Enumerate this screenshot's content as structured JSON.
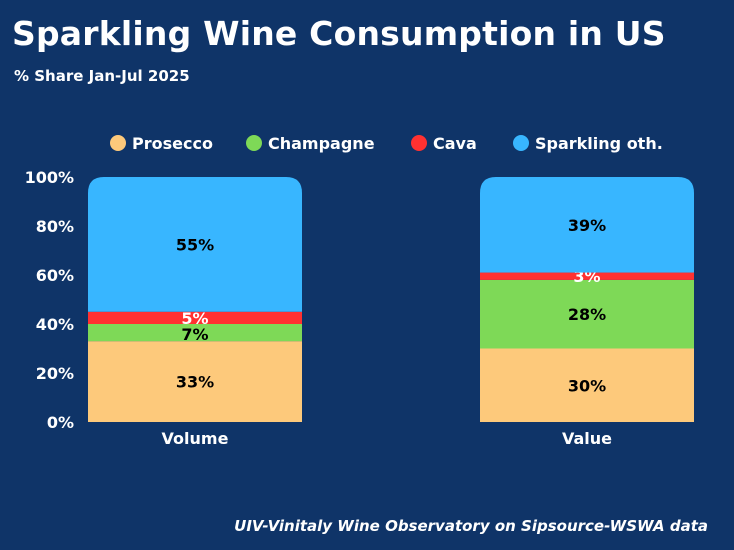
{
  "chart_data": {
    "type": "bar",
    "stacked": true,
    "title": "Sparkling Wine Consumption in US",
    "subtitle": "% Share Jan-Jul 2025",
    "source": "UIV-Vinitaly Wine Observatory on Sipsource-WSWA data",
    "categories": [
      "Volume",
      "Value"
    ],
    "series": [
      {
        "name": "Prosecco",
        "color": "#fdc97b",
        "label_color": "#000000",
        "values": [
          33,
          30
        ],
        "labels": [
          "33%",
          "30%"
        ]
      },
      {
        "name": "Champagne",
        "color": "#7ed957",
        "label_color": "#000000",
        "values": [
          7,
          28
        ],
        "labels": [
          "7%",
          "28%"
        ]
      },
      {
        "name": "Cava",
        "color": "#ff3131",
        "label_color": "#ffffff",
        "values": [
          5,
          3
        ],
        "labels": [
          "5%",
          "3%"
        ]
      },
      {
        "name": "Sparkling oth.",
        "color": "#38b6ff",
        "label_color": "#000000",
        "values": [
          55,
          39
        ],
        "labels": [
          "55%",
          "39%"
        ]
      }
    ],
    "ylim": [
      0,
      100
    ],
    "yticks": [
      "0%",
      "20%",
      "40%",
      "60%",
      "80%",
      "100%"
    ],
    "legend_position": "top",
    "grid": false
  }
}
